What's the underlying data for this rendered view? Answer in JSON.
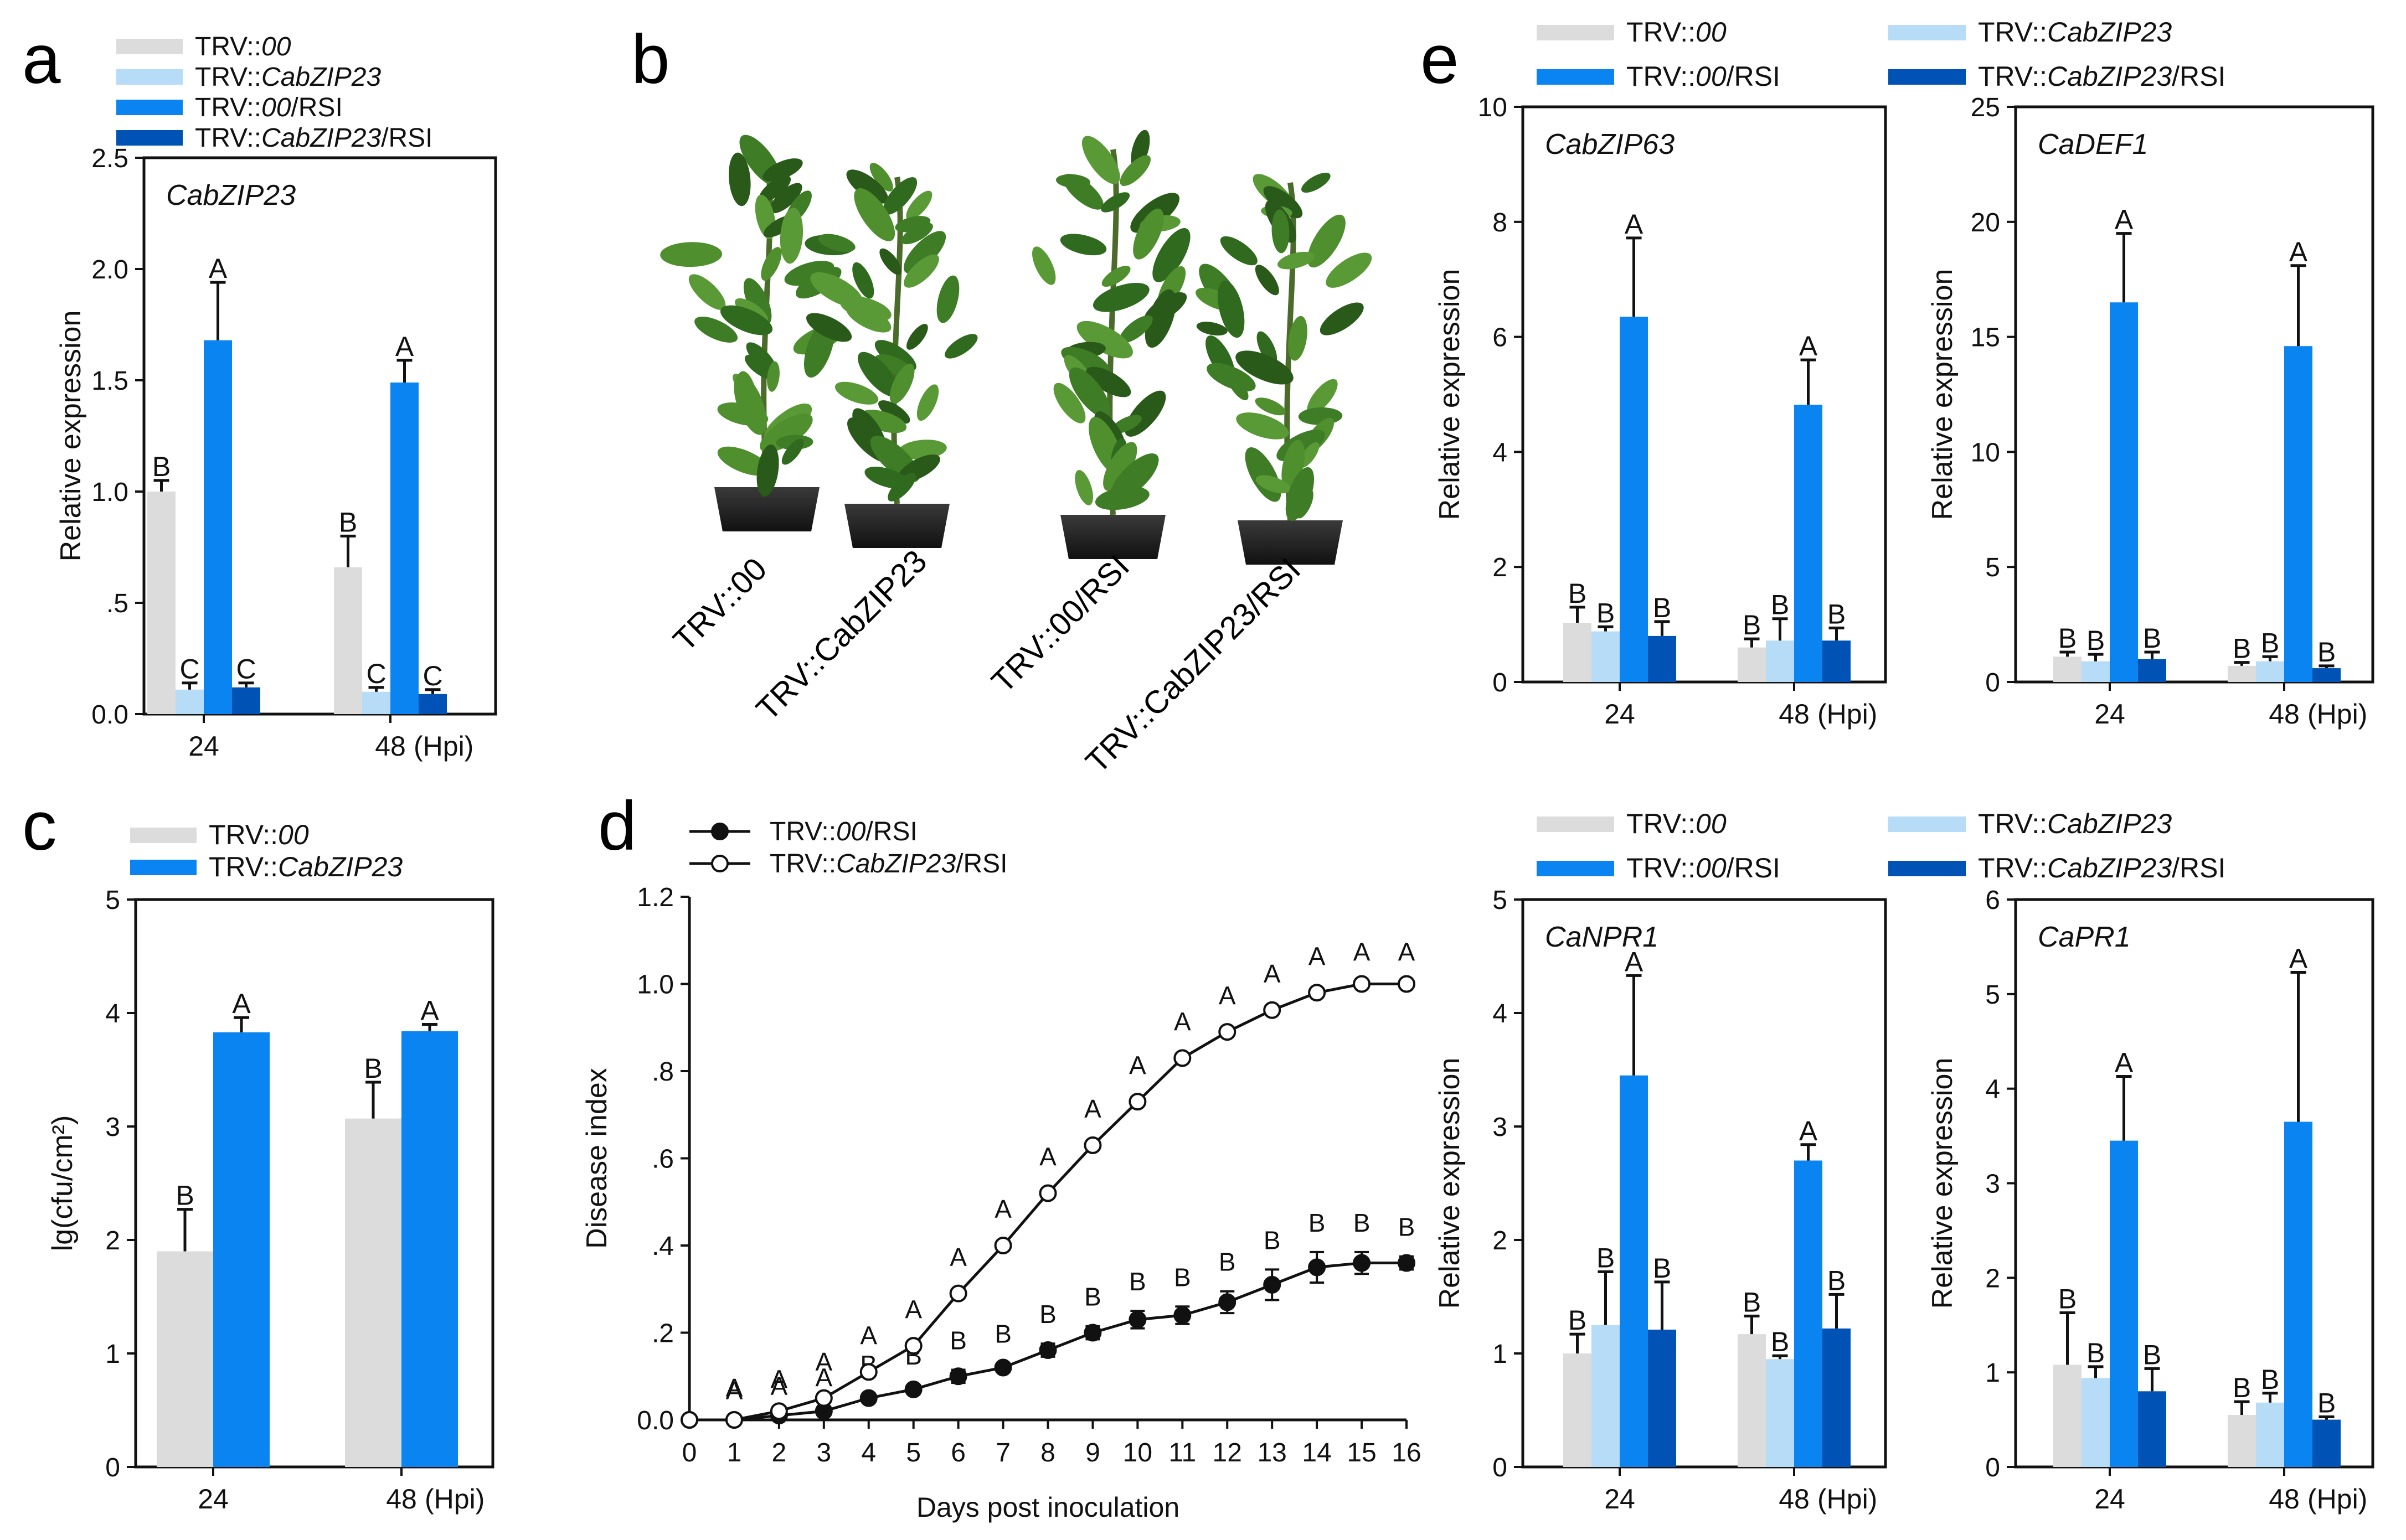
{
  "figure_panel_letters": {
    "a": "a",
    "b": "b",
    "c": "c",
    "d": "d",
    "e": "e"
  },
  "colors": {
    "TRV00": "#dcdcdc",
    "TRVCab": "#b6dcf8",
    "TRV00RSI": "#0a84f0",
    "TRVCabRSI": "#0052b4",
    "axis": "#111111"
  },
  "legend_groups": {
    "four": [
      {
        "prefix": "TRV::",
        "italic": "00",
        "suffix": "",
        "color_key": "TRV00"
      },
      {
        "prefix": "TRV::",
        "italic": "CabZIP23",
        "suffix": "",
        "color_key": "TRVCab"
      },
      {
        "prefix": "TRV::",
        "italic": "00",
        "suffix": "/RSI",
        "color_key": "TRV00RSI"
      },
      {
        "prefix": "TRV::",
        "italic": "CabZIP23",
        "suffix": "/RSI",
        "color_key": "TRVCabRSI"
      }
    ],
    "two": [
      {
        "prefix": "TRV::",
        "italic": "00",
        "suffix": "",
        "color_key": "TRV00"
      },
      {
        "prefix": "TRV::",
        "italic": "CabZIP23",
        "suffix": "",
        "color_key": "TRV00RSI"
      }
    ],
    "line": [
      {
        "prefix": "TRV::",
        "italic": "00",
        "suffix": "/RSI",
        "marker": "filled"
      },
      {
        "prefix": "TRV::",
        "italic": "CabZIP23",
        "suffix": "/RSI",
        "marker": "open"
      }
    ]
  },
  "photo_labels": [
    "TRV::00",
    "TRV::CabZIP23",
    "TRV::00/RSI",
    "TRV::CabZIP23/RSI"
  ],
  "chart_data": [
    {
      "id": "a",
      "type": "bar",
      "title": "CabZIP23",
      "ylabel": "Relative expression",
      "xunit": "(Hpi)",
      "categories": [
        "24",
        "48"
      ],
      "yticks": [
        "0.0",
        ".5",
        "1.0",
        "1.5",
        "2.0",
        "2.5"
      ],
      "ylim": [
        0,
        2.5
      ],
      "series": [
        {
          "name": "TRV::00",
          "color_key": "TRV00",
          "values": [
            1.0,
            0.66
          ],
          "errors": [
            0.05,
            0.14
          ],
          "letters": [
            "B",
            "B"
          ]
        },
        {
          "name": "TRV::CabZIP23",
          "color_key": "TRVCab",
          "values": [
            0.11,
            0.1
          ],
          "errors": [
            0.03,
            0.02
          ],
          "letters": [
            "C",
            "C"
          ]
        },
        {
          "name": "TRV::00/RSI",
          "color_key": "TRV00RSI",
          "values": [
            1.68,
            1.49
          ],
          "errors": [
            0.26,
            0.1
          ],
          "letters": [
            "A",
            "A"
          ]
        },
        {
          "name": "TRV::CabZIP23/RSI",
          "color_key": "TRVCabRSI",
          "values": [
            0.12,
            0.09
          ],
          "errors": [
            0.02,
            0.02
          ],
          "letters": [
            "C",
            "C"
          ]
        }
      ]
    },
    {
      "id": "c",
      "type": "bar",
      "title": "",
      "ylabel": "lg(cfu/cm²)",
      "xunit": "(Hpi)",
      "categories": [
        "24",
        "48"
      ],
      "yticks": [
        "0",
        "1",
        "2",
        "3",
        "4",
        "5"
      ],
      "ylim": [
        0,
        5
      ],
      "series": [
        {
          "name": "TRV::00",
          "color_key": "TRV00",
          "values": [
            1.9,
            3.07
          ],
          "errors": [
            0.37,
            0.32
          ],
          "letters": [
            "B",
            "B"
          ]
        },
        {
          "name": "TRV::CabZIP23",
          "color_key": "TRV00RSI",
          "values": [
            3.83,
            3.84
          ],
          "errors": [
            0.13,
            0.06
          ],
          "letters": [
            "A",
            "A"
          ]
        }
      ]
    },
    {
      "id": "d",
      "type": "line",
      "xlabel": "Days post inoculation",
      "ylabel": "Disease index",
      "xticks": [
        "0",
        "1",
        "2",
        "3",
        "4",
        "5",
        "6",
        "7",
        "8",
        "9",
        "10",
        "11",
        "12",
        "13",
        "14",
        "15",
        "16"
      ],
      "yticks": [
        "0.0",
        ".2",
        ".4",
        ".6",
        ".8",
        "1.0",
        "1.2"
      ],
      "ylim": [
        0,
        1.2
      ],
      "xlim": [
        0,
        16
      ],
      "series": [
        {
          "name": "TRV::00/RSI",
          "marker": "filled",
          "x": [
            0,
            1,
            2,
            3,
            4,
            5,
            6,
            7,
            8,
            9,
            10,
            11,
            12,
            13,
            14,
            15,
            16
          ],
          "values": [
            0,
            0,
            0.01,
            0.02,
            0.05,
            0.07,
            0.1,
            0.12,
            0.16,
            0.2,
            0.23,
            0.24,
            0.27,
            0.31,
            0.35,
            0.36,
            0.36
          ],
          "errors": [
            0,
            0,
            0,
            0.01,
            0.01,
            0.01,
            0.015,
            0.01,
            0.015,
            0.015,
            0.02,
            0.02,
            0.025,
            0.035,
            0.035,
            0.025,
            0.015
          ],
          "letters": [
            "",
            "A",
            "A",
            "A",
            "B",
            "B",
            "B",
            "B",
            "B",
            "B",
            "B",
            "B",
            "B",
            "B",
            "B",
            "B",
            "B"
          ]
        },
        {
          "name": "TRV::CabZIP23/RSI",
          "marker": "open",
          "x": [
            0,
            1,
            2,
            3,
            4,
            5,
            6,
            7,
            8,
            9,
            10,
            11,
            12,
            13,
            14,
            15,
            16
          ],
          "values": [
            0,
            0,
            0.02,
            0.05,
            0.11,
            0.17,
            0.29,
            0.4,
            0.52,
            0.63,
            0.73,
            0.83,
            0.89,
            0.94,
            0.98,
            1.0,
            1.0
          ],
          "errors": [
            0,
            0,
            0,
            0.01,
            0.01,
            0.01,
            0.01,
            0.01,
            0.01,
            0.01,
            0.01,
            0.01,
            0.01,
            0.01,
            0.01,
            0,
            0
          ],
          "letters": [
            "",
            "A",
            "A",
            "A",
            "A",
            "A",
            "A",
            "A",
            "A",
            "A",
            "A",
            "A",
            "A",
            "A",
            "A",
            "A",
            "A"
          ]
        }
      ]
    },
    {
      "id": "e1",
      "type": "bar",
      "title": "CabZIP63",
      "ylabel": "Relative expression",
      "xunit": "(Hpi)",
      "categories": [
        "24",
        "48"
      ],
      "yticks": [
        "0",
        "2",
        "4",
        "6",
        "8",
        "10"
      ],
      "ylim": [
        0,
        10
      ],
      "series": [
        {
          "name": "TRV::00",
          "color_key": "TRV00",
          "values": [
            1.03,
            0.6
          ],
          "errors": [
            0.27,
            0.15
          ],
          "letters": [
            "B",
            "B"
          ]
        },
        {
          "name": "TRV::CabZIP23",
          "color_key": "TRVCab",
          "values": [
            0.88,
            0.72
          ],
          "errors": [
            0.08,
            0.38
          ],
          "letters": [
            "B",
            "B"
          ]
        },
        {
          "name": "TRV::00/RSI",
          "color_key": "TRV00RSI",
          "values": [
            6.35,
            4.82
          ],
          "errors": [
            1.37,
            0.78
          ],
          "letters": [
            "A",
            "A"
          ]
        },
        {
          "name": "TRV::CabZIP23/RSI",
          "color_key": "TRVCabRSI",
          "values": [
            0.8,
            0.72
          ],
          "errors": [
            0.25,
            0.22
          ],
          "letters": [
            "B",
            "B"
          ]
        }
      ]
    },
    {
      "id": "e2",
      "type": "bar",
      "title": "CaDEF1",
      "ylabel": "Relative expression",
      "xunit": "(Hpi)",
      "categories": [
        "24",
        "48"
      ],
      "yticks": [
        "0",
        "5",
        "10",
        "15",
        "20",
        "25"
      ],
      "ylim": [
        0,
        25
      ],
      "series": [
        {
          "name": "TRV::00",
          "color_key": "TRV00",
          "values": [
            1.1,
            0.7
          ],
          "errors": [
            0.2,
            0.15
          ],
          "letters": [
            "B",
            "B"
          ]
        },
        {
          "name": "TRV::CabZIP23",
          "color_key": "TRVCab",
          "values": [
            0.9,
            0.9
          ],
          "errors": [
            0.3,
            0.2
          ],
          "letters": [
            "B",
            "B"
          ]
        },
        {
          "name": "TRV::00/RSI",
          "color_key": "TRV00RSI",
          "values": [
            16.5,
            14.6
          ],
          "errors": [
            3.0,
            3.5
          ],
          "letters": [
            "A",
            "A"
          ]
        },
        {
          "name": "TRV::CabZIP23/RSI",
          "color_key": "TRVCabRSI",
          "values": [
            1.0,
            0.6
          ],
          "errors": [
            0.3,
            0.1
          ],
          "letters": [
            "B",
            "B"
          ]
        }
      ]
    },
    {
      "id": "e3",
      "type": "bar",
      "title": "CaNPR1",
      "ylabel": "Relative expression",
      "xunit": "(Hpi)",
      "categories": [
        "24",
        "48"
      ],
      "yticks": [
        "0",
        "1",
        "2",
        "3",
        "4",
        "5"
      ],
      "ylim": [
        0,
        5
      ],
      "series": [
        {
          "name": "TRV::00",
          "color_key": "TRV00",
          "values": [
            1.0,
            1.17
          ],
          "errors": [
            0.17,
            0.16
          ],
          "letters": [
            "B",
            "B"
          ]
        },
        {
          "name": "TRV::CabZIP23",
          "color_key": "TRVCab",
          "values": [
            1.25,
            0.95
          ],
          "errors": [
            0.47,
            0.03
          ],
          "letters": [
            "B",
            "B"
          ]
        },
        {
          "name": "TRV::00/RSI",
          "color_key": "TRV00RSI",
          "values": [
            3.45,
            2.7
          ],
          "errors": [
            0.88,
            0.14
          ],
          "letters": [
            "A",
            "A"
          ]
        },
        {
          "name": "TRV::CabZIP23/RSI",
          "color_key": "TRVCabRSI",
          "values": [
            1.21,
            1.22
          ],
          "errors": [
            0.42,
            0.3
          ],
          "letters": [
            "B",
            "B"
          ]
        }
      ]
    },
    {
      "id": "e4",
      "type": "bar",
      "title": "CaPR1",
      "ylabel": "Relative expression",
      "xunit": "(Hpi)",
      "categories": [
        "24",
        "48"
      ],
      "yticks": [
        "0",
        "1",
        "2",
        "3",
        "4",
        "5",
        "6"
      ],
      "ylim": [
        0,
        6
      ],
      "series": [
        {
          "name": "TRV::00",
          "color_key": "TRV00",
          "values": [
            1.08,
            0.55
          ],
          "errors": [
            0.55,
            0.14
          ],
          "letters": [
            "B",
            "B"
          ]
        },
        {
          "name": "TRV::CabZIP23",
          "color_key": "TRVCab",
          "values": [
            0.94,
            0.68
          ],
          "errors": [
            0.12,
            0.1
          ],
          "letters": [
            "B",
            "B"
          ]
        },
        {
          "name": "TRV::00/RSI",
          "color_key": "TRV00RSI",
          "values": [
            3.45,
            3.65
          ],
          "errors": [
            0.68,
            1.58
          ],
          "letters": [
            "A",
            "A"
          ]
        },
        {
          "name": "TRV::CabZIP23/RSI",
          "color_key": "TRVCabRSI",
          "values": [
            0.8,
            0.5
          ],
          "errors": [
            0.24,
            0.03
          ],
          "letters": [
            "B",
            "B"
          ]
        }
      ]
    }
  ]
}
